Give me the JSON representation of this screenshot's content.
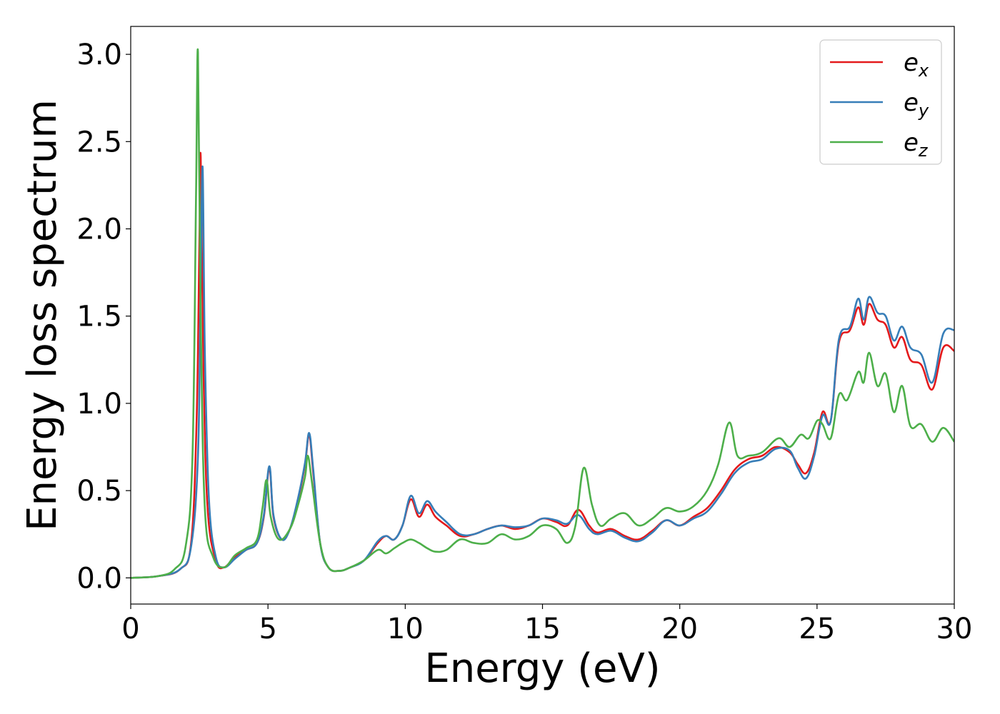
{
  "chart_data": {
    "type": "line",
    "xlabel": "Energy (eV)",
    "ylabel": "Energy loss spectrum",
    "xlim": [
      0,
      30
    ],
    "ylim": [
      -0.15,
      3.16
    ],
    "xticks": [
      0,
      5,
      10,
      15,
      20,
      25,
      30
    ],
    "yticks": [
      0.0,
      0.5,
      1.0,
      1.5,
      2.0,
      2.5,
      3.0
    ],
    "xtick_labels": [
      "0",
      "5",
      "10",
      "15",
      "20",
      "25",
      "30"
    ],
    "ytick_labels": [
      "0.0",
      "0.5",
      "1.0",
      "1.5",
      "2.0",
      "2.5",
      "3.0"
    ],
    "grid": false,
    "legend_position": "top-right",
    "series": [
      {
        "name": "e_x",
        "legend": {
          "base": "e",
          "sub": "x"
        },
        "color": "#e41a1c",
        "x": [
          0,
          1.0,
          1.8,
          2.2,
          2.4,
          2.5,
          2.55,
          2.65,
          2.8,
          3.1,
          3.4,
          3.8,
          4.2,
          4.6,
          4.85,
          5.05,
          5.2,
          5.5,
          5.8,
          6.1,
          6.35,
          6.5,
          6.65,
          6.9,
          7.2,
          7.6,
          8.0,
          8.5,
          9.0,
          9.3,
          9.6,
          9.9,
          10.2,
          10.5,
          10.8,
          11.1,
          11.5,
          12.0,
          12.5,
          13.0,
          13.5,
          14.0,
          14.5,
          15.0,
          15.5,
          15.9,
          16.3,
          16.7,
          17.0,
          17.5,
          18.0,
          18.5,
          19.0,
          19.5,
          20.0,
          20.5,
          21.0,
          21.5,
          22.0,
          22.5,
          23.0,
          23.5,
          24.0,
          24.3,
          24.6,
          24.9,
          25.2,
          25.5,
          25.8,
          26.2,
          26.5,
          26.7,
          26.9,
          27.2,
          27.5,
          27.8,
          28.1,
          28.4,
          28.8,
          29.2,
          29.6,
          30.0
        ],
        "values": [
          0.0,
          0.01,
          0.05,
          0.2,
          0.9,
          1.9,
          2.41,
          1.2,
          0.4,
          0.1,
          0.06,
          0.12,
          0.16,
          0.2,
          0.35,
          0.63,
          0.35,
          0.22,
          0.28,
          0.45,
          0.65,
          0.82,
          0.6,
          0.2,
          0.06,
          0.04,
          0.06,
          0.1,
          0.2,
          0.24,
          0.22,
          0.3,
          0.45,
          0.35,
          0.42,
          0.35,
          0.3,
          0.24,
          0.25,
          0.28,
          0.3,
          0.28,
          0.3,
          0.34,
          0.32,
          0.3,
          0.39,
          0.3,
          0.26,
          0.28,
          0.24,
          0.22,
          0.27,
          0.33,
          0.3,
          0.35,
          0.4,
          0.5,
          0.62,
          0.68,
          0.7,
          0.75,
          0.72,
          0.65,
          0.6,
          0.72,
          0.95,
          0.9,
          1.35,
          1.42,
          1.55,
          1.45,
          1.57,
          1.48,
          1.45,
          1.32,
          1.38,
          1.25,
          1.22,
          1.08,
          1.32,
          1.3
        ]
      },
      {
        "name": "e_y",
        "legend": {
          "base": "e",
          "sub": "y"
        },
        "color": "#377eb8",
        "x": [
          0,
          1.0,
          1.8,
          2.2,
          2.45,
          2.55,
          2.62,
          2.7,
          2.85,
          3.1,
          3.4,
          3.8,
          4.2,
          4.6,
          4.85,
          5.05,
          5.2,
          5.5,
          5.8,
          6.1,
          6.35,
          6.5,
          6.65,
          6.9,
          7.2,
          7.6,
          8.0,
          8.5,
          9.0,
          9.3,
          9.6,
          9.9,
          10.2,
          10.5,
          10.8,
          11.1,
          11.5,
          12.0,
          12.5,
          13.0,
          13.5,
          14.0,
          14.5,
          15.0,
          15.5,
          15.9,
          16.3,
          16.7,
          17.0,
          17.5,
          18.0,
          18.5,
          19.0,
          19.5,
          20.0,
          20.5,
          21.0,
          21.5,
          22.0,
          22.5,
          23.0,
          23.5,
          24.0,
          24.3,
          24.6,
          24.9,
          25.2,
          25.5,
          25.8,
          26.2,
          26.5,
          26.7,
          26.9,
          27.2,
          27.5,
          27.8,
          28.1,
          28.4,
          28.8,
          29.2,
          29.6,
          30.0
        ],
        "values": [
          0.0,
          0.01,
          0.05,
          0.18,
          0.7,
          1.7,
          2.35,
          1.3,
          0.45,
          0.12,
          0.06,
          0.11,
          0.16,
          0.2,
          0.36,
          0.64,
          0.36,
          0.22,
          0.28,
          0.46,
          0.66,
          0.83,
          0.62,
          0.2,
          0.06,
          0.04,
          0.06,
          0.1,
          0.21,
          0.24,
          0.22,
          0.3,
          0.47,
          0.37,
          0.44,
          0.38,
          0.32,
          0.25,
          0.25,
          0.28,
          0.3,
          0.29,
          0.3,
          0.34,
          0.33,
          0.31,
          0.36,
          0.28,
          0.25,
          0.27,
          0.23,
          0.21,
          0.26,
          0.33,
          0.3,
          0.34,
          0.38,
          0.48,
          0.6,
          0.66,
          0.68,
          0.74,
          0.73,
          0.63,
          0.57,
          0.7,
          0.93,
          0.9,
          1.37,
          1.44,
          1.6,
          1.48,
          1.61,
          1.52,
          1.5,
          1.36,
          1.44,
          1.32,
          1.28,
          1.12,
          1.4,
          1.42
        ]
      },
      {
        "name": "e_z",
        "legend": {
          "base": "e",
          "sub": "z"
        },
        "color": "#4daf4a",
        "x": [
          0,
          1.0,
          1.6,
          2.0,
          2.25,
          2.38,
          2.45,
          2.55,
          2.7,
          3.0,
          3.4,
          3.8,
          4.2,
          4.6,
          4.8,
          4.95,
          5.1,
          5.4,
          5.8,
          6.1,
          6.35,
          6.45,
          6.6,
          6.9,
          7.2,
          7.6,
          8.0,
          8.5,
          9.0,
          9.3,
          9.6,
          9.9,
          10.2,
          10.5,
          10.8,
          11.1,
          11.5,
          12.0,
          12.5,
          13.0,
          13.5,
          14.0,
          14.5,
          15.0,
          15.5,
          15.9,
          16.2,
          16.5,
          16.8,
          17.1,
          17.5,
          18.0,
          18.5,
          19.0,
          19.5,
          20.0,
          20.5,
          21.0,
          21.4,
          21.8,
          22.1,
          22.5,
          23.0,
          23.6,
          24.0,
          24.4,
          24.7,
          25.0,
          25.2,
          25.5,
          25.8,
          26.1,
          26.5,
          26.7,
          26.9,
          27.2,
          27.5,
          27.8,
          28.1,
          28.4,
          28.8,
          29.2,
          29.6,
          30.0
        ],
        "values": [
          0.0,
          0.01,
          0.05,
          0.18,
          0.7,
          2.2,
          3.01,
          1.5,
          0.4,
          0.12,
          0.06,
          0.13,
          0.17,
          0.22,
          0.4,
          0.56,
          0.35,
          0.22,
          0.28,
          0.42,
          0.58,
          0.7,
          0.55,
          0.2,
          0.06,
          0.04,
          0.06,
          0.1,
          0.16,
          0.14,
          0.17,
          0.2,
          0.22,
          0.2,
          0.17,
          0.15,
          0.16,
          0.22,
          0.2,
          0.2,
          0.25,
          0.22,
          0.24,
          0.3,
          0.28,
          0.2,
          0.3,
          0.63,
          0.42,
          0.3,
          0.34,
          0.37,
          0.3,
          0.34,
          0.4,
          0.38,
          0.41,
          0.5,
          0.65,
          0.89,
          0.7,
          0.7,
          0.72,
          0.8,
          0.75,
          0.82,
          0.8,
          0.9,
          0.88,
          0.8,
          1.05,
          1.02,
          1.18,
          1.12,
          1.29,
          1.1,
          1.17,
          0.95,
          1.1,
          0.87,
          0.88,
          0.78,
          0.86,
          0.78
        ]
      }
    ]
  }
}
